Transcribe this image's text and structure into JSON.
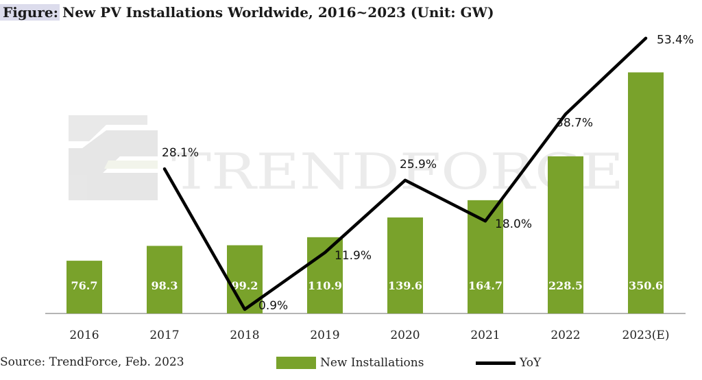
{
  "title": {
    "prefix": "Figure:",
    "text": "New PV Installations Worldwide, 2016~2023 (Unit: GW)"
  },
  "watermark": "TRENDFORCE",
  "source": "Source: TrendForce, Feb. 2023",
  "colors": {
    "bar": "#79a22b",
    "line": "#000000",
    "axis": "#888888"
  },
  "chart_data": {
    "type": "bar",
    "categories": [
      "2016",
      "2017",
      "2018",
      "2019",
      "2020",
      "2021",
      "2022",
      "2023(E)"
    ],
    "series": [
      {
        "name": "New Installations",
        "type": "bar",
        "values": [
          76.7,
          98.3,
          99.2,
          110.9,
          139.6,
          164.7,
          228.5,
          350.6
        ],
        "labels": [
          "76.7",
          "98.3",
          "99.2",
          "110.9",
          "139.6",
          "164.7",
          "228.5",
          "350.6"
        ]
      },
      {
        "name": "YoY",
        "type": "line",
        "values": [
          null,
          28.1,
          0.9,
          11.9,
          25.9,
          18.0,
          38.7,
          53.4
        ],
        "labels": [
          "",
          "28.1%",
          "0.9%",
          "11.9%",
          "25.9%",
          "18.0%",
          "38.7%",
          "53.4%"
        ]
      }
    ],
    "ylim_bar": [
      0,
      390
    ],
    "ylim_yoy": [
      0,
      55
    ],
    "legend": "bottom",
    "grid": false
  }
}
